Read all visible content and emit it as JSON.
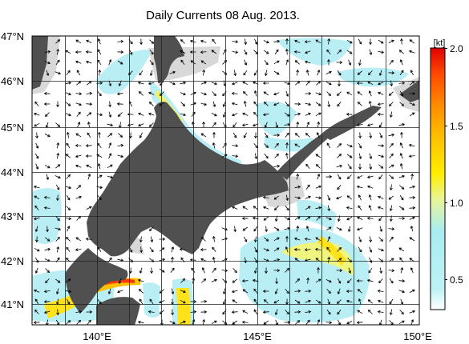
{
  "title": "Daily Currents 08 Aug. 2013.",
  "map": {
    "lat_labels": [
      "47°N",
      "46°N",
      "45°N",
      "44°N",
      "43°N",
      "42°N",
      "41°N"
    ],
    "lon_labels": [
      "140°E",
      "145°E",
      "150°E"
    ],
    "lon_range": [
      138,
      150
    ],
    "lat_range": [
      40.5,
      47
    ],
    "grid": true
  },
  "colorbar": {
    "unit": "[kt]",
    "ticks": [
      "2.0",
      "1.5",
      "1.0",
      "0.5"
    ],
    "range": [
      0.3,
      2.0
    ],
    "colors": [
      "#ffffff",
      "#bdf2f5",
      "#8fe3f0",
      "#f0f56e",
      "#ffee00",
      "#ffc000",
      "#ff8c00",
      "#ff4a00",
      "#e80000"
    ]
  },
  "colors": {
    "land": "#505050",
    "shallow": "#d8d8d8",
    "weak_current": "#b8eef4",
    "strong_current": "#ffe21a",
    "peak_current": "#ff3a00",
    "arrow": "#000000"
  }
}
